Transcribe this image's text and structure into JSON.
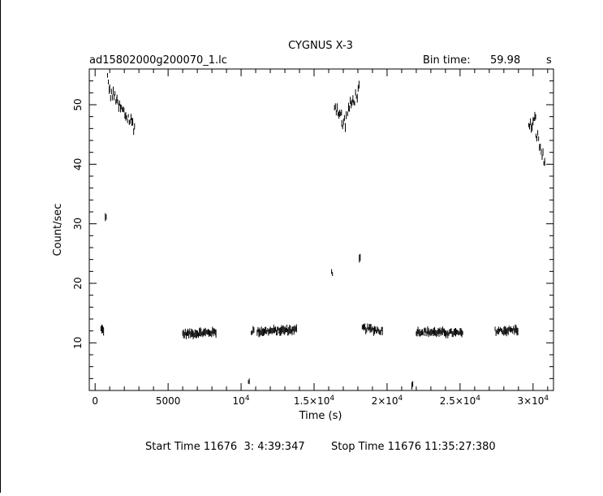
{
  "chart_data": {
    "type": "scatter",
    "title": "CYGNUS X-3",
    "subtitle_left": "ad15802000g200070_1.lc",
    "bin_time_label": "Bin time:",
    "bin_time_value": "59.98",
    "bin_time_unit": "s",
    "xlabel": "Time (s)",
    "ylabel": "Count/sec",
    "xlim": [
      -400,
      31400
    ],
    "ylim": [
      2,
      56
    ],
    "x_ticks": [
      {
        "value": 0,
        "label": "0"
      },
      {
        "value": 5000,
        "label": "5000"
      },
      {
        "value": 10000,
        "label": "10",
        "exp": "4"
      },
      {
        "value": 15000,
        "label": "1.5×10",
        "exp": "4"
      },
      {
        "value": 20000,
        "label": "2×10",
        "exp": "4"
      },
      {
        "value": 25000,
        "label": "2.5×10",
        "exp": "4"
      },
      {
        "value": 30000,
        "label": "3×10",
        "exp": "4"
      }
    ],
    "y_ticks": [
      {
        "value": 10,
        "label": "10"
      },
      {
        "value": 20,
        "label": "20"
      },
      {
        "value": 30,
        "label": "30"
      },
      {
        "value": 40,
        "label": "40"
      },
      {
        "value": 50,
        "label": "50"
      }
    ],
    "grid": false,
    "segments": [
      {
        "x_start": 400,
        "x_end": 600,
        "start": 12.3,
        "end": 12.1,
        "noise": 0.6
      },
      {
        "x_start": 700,
        "x_end": 800,
        "start": 31.0,
        "end": 31.0,
        "noise": 0.6
      },
      {
        "x_start": 850,
        "x_end": 1000,
        "start": 54.5,
        "end": 52.5,
        "noise": 1.5
      },
      {
        "x_start": 1000,
        "x_end": 1500,
        "start": 52.0,
        "end": 51.0,
        "noise": 2.0
      },
      {
        "x_start": 1500,
        "x_end": 2700,
        "start": 50.0,
        "end": 46.5,
        "noise": 2.5
      },
      {
        "x_start": 6000,
        "x_end": 8300,
        "start": 11.5,
        "end": 11.8,
        "noise": 0.7
      },
      {
        "x_start": 10500,
        "x_end": 10600,
        "start": 3.5,
        "end": 3.5,
        "noise": 0.4
      },
      {
        "x_start": 10700,
        "x_end": 10900,
        "start": 12.0,
        "end": 12.0,
        "noise": 0.8
      },
      {
        "x_start": 11100,
        "x_end": 13800,
        "start": 11.9,
        "end": 12.2,
        "noise": 0.7
      },
      {
        "x_start": 16200,
        "x_end": 16300,
        "start": 21.8,
        "end": 21.8,
        "noise": 0.7
      },
      {
        "x_start": 16400,
        "x_end": 16900,
        "start": 50.0,
        "end": 48.0,
        "noise": 2.0
      },
      {
        "x_start": 16900,
        "x_end": 17200,
        "start": 46.5,
        "end": 47.5,
        "noise": 2.5
      },
      {
        "x_start": 17300,
        "x_end": 18100,
        "start": 49.0,
        "end": 52.5,
        "noise": 2.0
      },
      {
        "x_start": 18100,
        "x_end": 18200,
        "start": 24.0,
        "end": 24.0,
        "noise": 0.7
      },
      {
        "x_start": 18300,
        "x_end": 19700,
        "start": 12.5,
        "end": 12.0,
        "noise": 0.8
      },
      {
        "x_start": 21700,
        "x_end": 21800,
        "start": 3.0,
        "end": 3.0,
        "noise": 0.5
      },
      {
        "x_start": 22000,
        "x_end": 25200,
        "start": 11.9,
        "end": 11.6,
        "noise": 0.7
      },
      {
        "x_start": 27400,
        "x_end": 29000,
        "start": 12.0,
        "end": 12.2,
        "noise": 0.8
      },
      {
        "x_start": 29700,
        "x_end": 30200,
        "start": 46.0,
        "end": 47.5,
        "noise": 2.0
      },
      {
        "x_start": 30200,
        "x_end": 30800,
        "start": 45.5,
        "end": 40.0,
        "noise": 2.2
      }
    ]
  },
  "footer": {
    "start_time": "Start Time 11676  3: 4:39:347",
    "stop_time": "Stop Time 11676 11:35:27:380"
  }
}
